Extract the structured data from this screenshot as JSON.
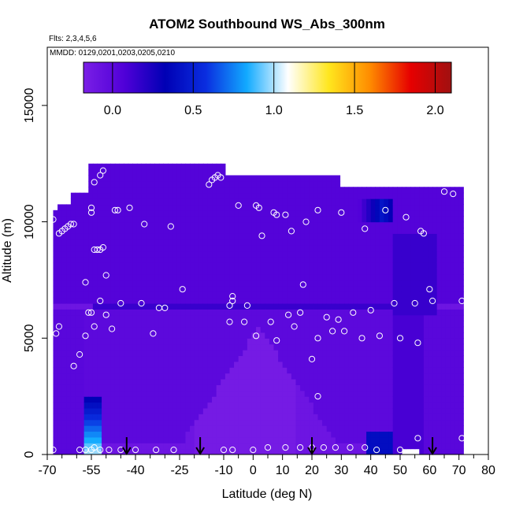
{
  "chart_data": {
    "type": "heatmap",
    "title": "ATOM2 Southbound WS_Abs_300nm",
    "flights_note": "Flts: 2,3,4,5,6",
    "dates_note": "MMDD: 0129,0201,0203,0205,0210",
    "xlabel": "Latitude (deg N)",
    "ylabel": "Altitude (m)",
    "xlim": [
      -70,
      80
    ],
    "ylim": [
      0,
      17500
    ],
    "x_ticks": [
      -70,
      -55,
      -40,
      -25,
      -10,
      0,
      10,
      20,
      30,
      40,
      50,
      60,
      70,
      80
    ],
    "x_minor_ticks": [
      -65,
      -60,
      -50,
      -45,
      -35,
      -30,
      -20,
      -15,
      -5,
      5,
      15,
      25,
      35,
      45,
      55,
      65,
      75
    ],
    "y_ticks": [
      0,
      5000,
      10000,
      15000
    ],
    "colorbar": {
      "range": [
        -0.18,
        2.1
      ],
      "ticks": [
        0.0,
        0.5,
        1.0,
        1.5,
        2.0
      ],
      "tick_labels": [
        "0.0",
        "0.5",
        "1.0",
        "1.5",
        "2.0"
      ],
      "colors": [
        "#7a1fe6",
        "#5000d8",
        "#0000b4",
        "#0a2ee0",
        "#12aaff",
        "#ffffff",
        "#ffe61e",
        "#ff8c00",
        "#e60000",
        "#a01010"
      ]
    },
    "profile_arrows_lat": [
      -43,
      -18,
      20,
      61
    ],
    "sample_points": [
      [
        -68,
        10100
      ],
      [
        -66,
        9500
      ],
      [
        -65,
        9600
      ],
      [
        -64,
        9700
      ],
      [
        -63,
        9800
      ],
      [
        -62,
        9900
      ],
      [
        -61,
        9900
      ],
      [
        -55,
        10600
      ],
      [
        -55,
        10400
      ],
      [
        -54,
        8800
      ],
      [
        -53,
        8800
      ],
      [
        -52,
        8800
      ],
      [
        -51,
        8900
      ],
      [
        -54,
        11700
      ],
      [
        -52,
        12000
      ],
      [
        -51,
        12200
      ],
      [
        -47,
        10500
      ],
      [
        -46,
        10500
      ],
      [
        -42,
        10600
      ],
      [
        -37,
        9900
      ],
      [
        -28,
        9800
      ],
      [
        -15,
        11600
      ],
      [
        -14,
        11800
      ],
      [
        -13,
        11900
      ],
      [
        -12,
        12000
      ],
      [
        -11,
        11900
      ],
      [
        -5,
        10700
      ],
      [
        1,
        10700
      ],
      [
        2,
        10600
      ],
      [
        3,
        9400
      ],
      [
        7,
        10400
      ],
      [
        8,
        10300
      ],
      [
        11,
        10300
      ],
      [
        13,
        9600
      ],
      [
        18,
        10000
      ],
      [
        22,
        10500
      ],
      [
        30,
        10400
      ],
      [
        38,
        9700
      ],
      [
        45,
        10500
      ],
      [
        52,
        10200
      ],
      [
        57,
        9600
      ],
      [
        58,
        9500
      ],
      [
        65,
        11300
      ],
      [
        68,
        11200
      ],
      [
        -57,
        7400
      ],
      [
        -50,
        7700
      ],
      [
        -52,
        6600
      ],
      [
        -50,
        6000
      ],
      [
        -45,
        6500
      ],
      [
        -38,
        6500
      ],
      [
        -32,
        6300
      ],
      [
        -30,
        6300
      ],
      [
        -24,
        7100
      ],
      [
        -8,
        6400
      ],
      [
        -7,
        6800
      ],
      [
        -7,
        6600
      ],
      [
        -3,
        5700
      ],
      [
        -2,
        6400
      ],
      [
        -34,
        5200
      ],
      [
        -48,
        5400
      ],
      [
        -54,
        5500
      ],
      [
        -55,
        6100
      ],
      [
        -56,
        6100
      ],
      [
        -57,
        5100
      ],
      [
        -66,
        5500
      ],
      [
        -67,
        5200
      ],
      [
        -59,
        4300
      ],
      [
        -61,
        3800
      ],
      [
        -8,
        5700
      ],
      [
        1,
        5100
      ],
      [
        6,
        5700
      ],
      [
        8,
        4900
      ],
      [
        12,
        6000
      ],
      [
        14,
        5500
      ],
      [
        16,
        6100
      ],
      [
        17,
        7300
      ],
      [
        20,
        4100
      ],
      [
        22,
        5000
      ],
      [
        25,
        5900
      ],
      [
        27,
        5300
      ],
      [
        29,
        5800
      ],
      [
        31,
        5300
      ],
      [
        34,
        6100
      ],
      [
        37,
        5000
      ],
      [
        40,
        6200
      ],
      [
        43,
        5100
      ],
      [
        48,
        6500
      ],
      [
        50,
        5000
      ],
      [
        55,
        6500
      ],
      [
        56,
        4800
      ],
      [
        60,
        7100
      ],
      [
        61,
        6600
      ],
      [
        71,
        6600
      ],
      [
        -68,
        200
      ],
      [
        -59,
        200
      ],
      [
        -57,
        200
      ],
      [
        -55,
        200
      ],
      [
        -54,
        300
      ],
      [
        -52,
        200
      ],
      [
        -49,
        200
      ],
      [
        -45,
        200
      ],
      [
        -40,
        200
      ],
      [
        -33,
        200
      ],
      [
        -27,
        200
      ],
      [
        -10,
        200
      ],
      [
        -7,
        200
      ],
      [
        0,
        200
      ],
      [
        5,
        300
      ],
      [
        11,
        300
      ],
      [
        16,
        300
      ],
      [
        20,
        300
      ],
      [
        24,
        300
      ],
      [
        28,
        300
      ],
      [
        33,
        300
      ],
      [
        38,
        300
      ],
      [
        42,
        200
      ],
      [
        50,
        200
      ],
      [
        56,
        700
      ],
      [
        71,
        700
      ],
      [
        22,
        2500
      ]
    ]
  }
}
